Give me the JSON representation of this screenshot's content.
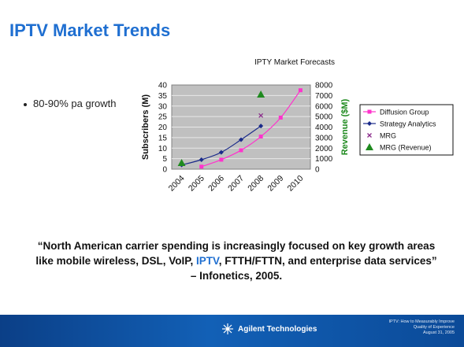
{
  "slide": {
    "title": "IPTV Market Trends",
    "bullet": "80-90% pa growth",
    "quote_part1": "“North American carrier spending is increasingly focused on key growth areas like mobile wireless, DSL, VoIP, ",
    "quote_highlight": "IPTV",
    "quote_part2": ", FTTH/FTTN, and enterprise data services” – Infonetics, 2005.",
    "footer_logo": "Agilent Technologies",
    "footer_note_1": "IPTV: How to Measurably Improve",
    "footer_note_2": "Quality of Experience",
    "footer_note_3": "August 31, 2005"
  },
  "chart_data": {
    "type": "line",
    "title": "IPTY Market Forecasts",
    "categories": [
      "2004",
      "2005",
      "2006",
      "2007",
      "2008",
      "2009",
      "2010"
    ],
    "ylabel_left": "Subscribers (M)",
    "ylabel_right": "Revenue ($M)",
    "ylim_left": [
      0,
      40
    ],
    "ylim_right": [
      0,
      8000
    ],
    "yticks_left": [
      "0",
      "5",
      "10",
      "15",
      "20",
      "25",
      "30",
      "35",
      "40"
    ],
    "yticks_right": [
      "0",
      "1000",
      "2000",
      "3000",
      "4000",
      "5000",
      "6000",
      "7000",
      "8000"
    ],
    "grid": true,
    "legend_position": "right",
    "series": [
      {
        "name": "Diffusion Group",
        "axis": "left",
        "color": "#ff33cc",
        "marker": "square",
        "x": [
          "2005",
          "2006",
          "2007",
          "2008",
          "2009",
          "2010"
        ],
        "values": [
          1.2,
          4.5,
          9,
          15.5,
          24.5,
          37.5
        ]
      },
      {
        "name": "Strategy Analytics",
        "axis": "left",
        "color": "#1a2a8a",
        "marker": "diamond",
        "x": [
          "2004",
          "2005",
          "2006",
          "2007",
          "2008"
        ],
        "values": [
          2,
          4.5,
          8,
          14,
          20.5
        ]
      },
      {
        "name": "MRG",
        "axis": "left",
        "color": "#8a2a8a",
        "marker": "x",
        "x": [
          "2008"
        ],
        "values": [
          25.5
        ]
      },
      {
        "name": "MRG (Revenue)",
        "axis": "right",
        "color": "#1f8a1f",
        "marker": "triangle",
        "x": [
          "2004",
          "2008"
        ],
        "values": [
          600,
          7100
        ]
      }
    ]
  }
}
